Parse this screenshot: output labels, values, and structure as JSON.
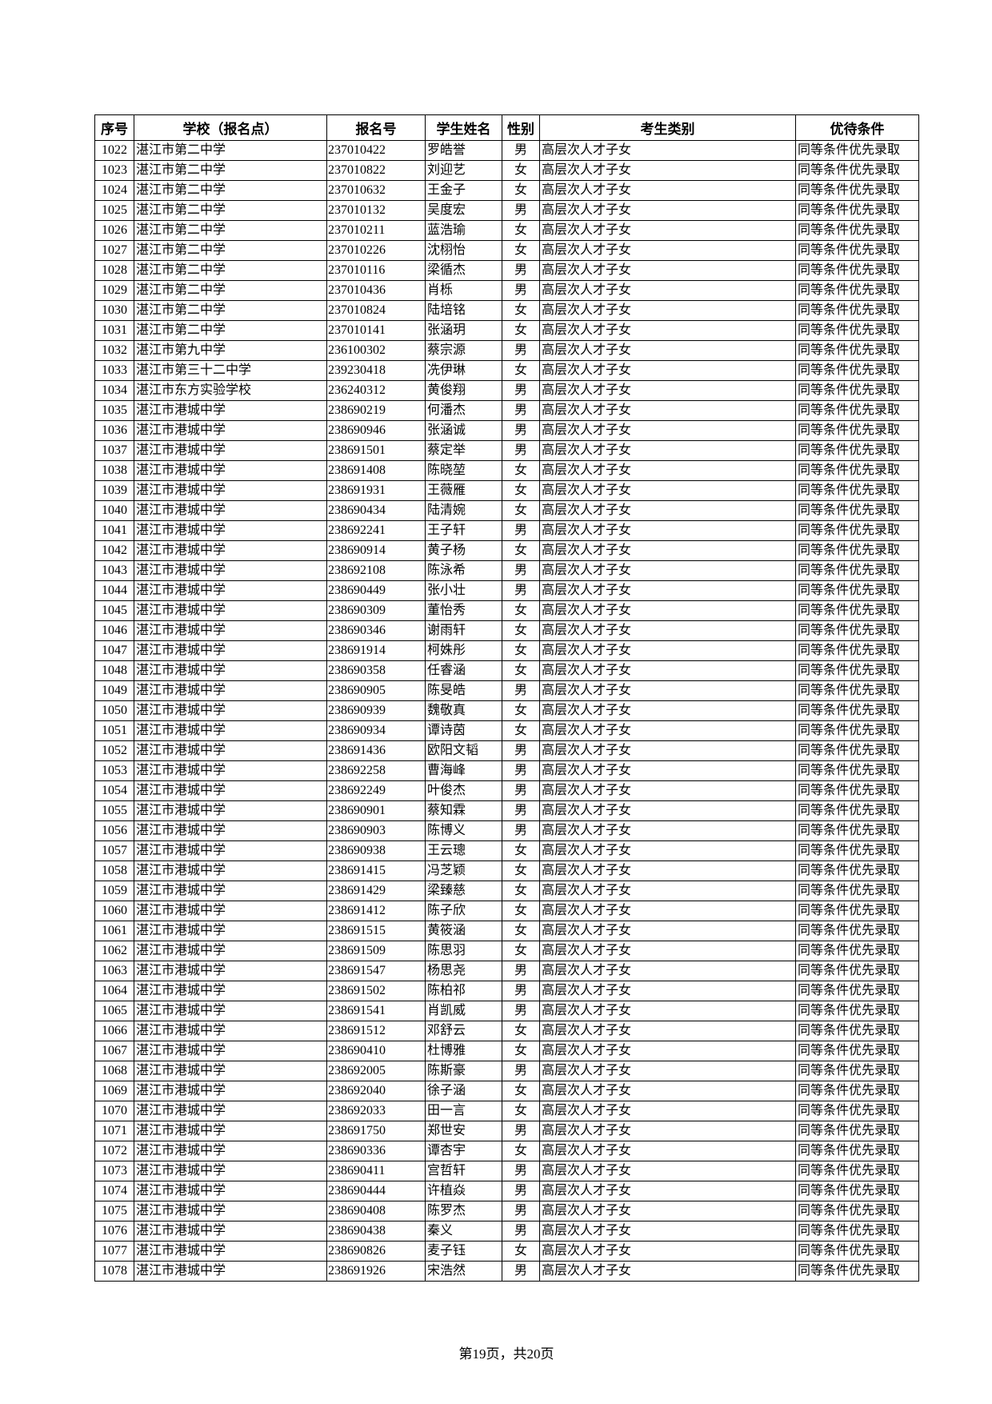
{
  "table": {
    "headers": [
      "序号",
      "学校（报名点）",
      "报名号",
      "学生姓名",
      "性别",
      "考生类别",
      "优待条件"
    ],
    "rows": [
      [
        "1022",
        "湛江市第二中学",
        "237010422",
        "罗皓誉",
        "男",
        "高层次人才子女",
        "同等条件优先录取"
      ],
      [
        "1023",
        "湛江市第二中学",
        "237010822",
        "刘迎艺",
        "女",
        "高层次人才子女",
        "同等条件优先录取"
      ],
      [
        "1024",
        "湛江市第二中学",
        "237010632",
        "王金子",
        "女",
        "高层次人才子女",
        "同等条件优先录取"
      ],
      [
        "1025",
        "湛江市第二中学",
        "237010132",
        "吴度宏",
        "男",
        "高层次人才子女",
        "同等条件优先录取"
      ],
      [
        "1026",
        "湛江市第二中学",
        "237010211",
        "蓝浩瑜",
        "女",
        "高层次人才子女",
        "同等条件优先录取"
      ],
      [
        "1027",
        "湛江市第二中学",
        "237010226",
        "沈栩怡",
        "女",
        "高层次人才子女",
        "同等条件优先录取"
      ],
      [
        "1028",
        "湛江市第二中学",
        "237010116",
        "梁循杰",
        "男",
        "高层次人才子女",
        "同等条件优先录取"
      ],
      [
        "1029",
        "湛江市第二中学",
        "237010436",
        "肖栎",
        "男",
        "高层次人才子女",
        "同等条件优先录取"
      ],
      [
        "1030",
        "湛江市第二中学",
        "237010824",
        "陆培铭",
        "女",
        "高层次人才子女",
        "同等条件优先录取"
      ],
      [
        "1031",
        "湛江市第二中学",
        "237010141",
        "张涵玥",
        "女",
        "高层次人才子女",
        "同等条件优先录取"
      ],
      [
        "1032",
        "湛江市第九中学",
        "236100302",
        "蔡宗源",
        "男",
        "高层次人才子女",
        "同等条件优先录取"
      ],
      [
        "1033",
        "湛江市第三十二中学",
        "239230418",
        "冼伊琳",
        "女",
        "高层次人才子女",
        "同等条件优先录取"
      ],
      [
        "1034",
        "湛江市东方实验学校",
        "236240312",
        "黄俊翔",
        "男",
        "高层次人才子女",
        "同等条件优先录取"
      ],
      [
        "1035",
        "湛江市港城中学",
        "238690219",
        "何潘杰",
        "男",
        "高层次人才子女",
        "同等条件优先录取"
      ],
      [
        "1036",
        "湛江市港城中学",
        "238690946",
        "张涵诚",
        "男",
        "高层次人才子女",
        "同等条件优先录取"
      ],
      [
        "1037",
        "湛江市港城中学",
        "238691501",
        "蔡定举",
        "男",
        "高层次人才子女",
        "同等条件优先录取"
      ],
      [
        "1038",
        "湛江市港城中学",
        "238691408",
        "陈晓堃",
        "女",
        "高层次人才子女",
        "同等条件优先录取"
      ],
      [
        "1039",
        "湛江市港城中学",
        "238691931",
        "王薇雁",
        "女",
        "高层次人才子女",
        "同等条件优先录取"
      ],
      [
        "1040",
        "湛江市港城中学",
        "238690434",
        "陆清婉",
        "女",
        "高层次人才子女",
        "同等条件优先录取"
      ],
      [
        "1041",
        "湛江市港城中学",
        "238692241",
        "王子轩",
        "男",
        "高层次人才子女",
        "同等条件优先录取"
      ],
      [
        "1042",
        "湛江市港城中学",
        "238690914",
        "黄子杨",
        "女",
        "高层次人才子女",
        "同等条件优先录取"
      ],
      [
        "1043",
        "湛江市港城中学",
        "238692108",
        "陈泳希",
        "男",
        "高层次人才子女",
        "同等条件优先录取"
      ],
      [
        "1044",
        "湛江市港城中学",
        "238690449",
        "张小壮",
        "男",
        "高层次人才子女",
        "同等条件优先录取"
      ],
      [
        "1045",
        "湛江市港城中学",
        "238690309",
        "董怡秀",
        "女",
        "高层次人才子女",
        "同等条件优先录取"
      ],
      [
        "1046",
        "湛江市港城中学",
        "238690346",
        "谢雨轩",
        "女",
        "高层次人才子女",
        "同等条件优先录取"
      ],
      [
        "1047",
        "湛江市港城中学",
        "238691914",
        "柯姝彤",
        "女",
        "高层次人才子女",
        "同等条件优先录取"
      ],
      [
        "1048",
        "湛江市港城中学",
        "238690358",
        "任睿涵",
        "女",
        "高层次人才子女",
        "同等条件优先录取"
      ],
      [
        "1049",
        "湛江市港城中学",
        "238690905",
        "陈旻皓",
        "男",
        "高层次人才子女",
        "同等条件优先录取"
      ],
      [
        "1050",
        "湛江市港城中学",
        "238690939",
        "魏敬真",
        "女",
        "高层次人才子女",
        "同等条件优先录取"
      ],
      [
        "1051",
        "湛江市港城中学",
        "238690934",
        "谭诗茵",
        "女",
        "高层次人才子女",
        "同等条件优先录取"
      ],
      [
        "1052",
        "湛江市港城中学",
        "238691436",
        "欧阳文韬",
        "男",
        "高层次人才子女",
        "同等条件优先录取"
      ],
      [
        "1053",
        "湛江市港城中学",
        "238692258",
        "曹海峰",
        "男",
        "高层次人才子女",
        "同等条件优先录取"
      ],
      [
        "1054",
        "湛江市港城中学",
        "238692249",
        "叶俊杰",
        "男",
        "高层次人才子女",
        "同等条件优先录取"
      ],
      [
        "1055",
        "湛江市港城中学",
        "238690901",
        "蔡知霖",
        "男",
        "高层次人才子女",
        "同等条件优先录取"
      ],
      [
        "1056",
        "湛江市港城中学",
        "238690903",
        "陈博义",
        "男",
        "高层次人才子女",
        "同等条件优先录取"
      ],
      [
        "1057",
        "湛江市港城中学",
        "238690938",
        "王云璁",
        "女",
        "高层次人才子女",
        "同等条件优先录取"
      ],
      [
        "1058",
        "湛江市港城中学",
        "238691415",
        "冯芝颖",
        "女",
        "高层次人才子女",
        "同等条件优先录取"
      ],
      [
        "1059",
        "湛江市港城中学",
        "238691429",
        "梁臻慈",
        "女",
        "高层次人才子女",
        "同等条件优先录取"
      ],
      [
        "1060",
        "湛江市港城中学",
        "238691412",
        "陈子欣",
        "女",
        "高层次人才子女",
        "同等条件优先录取"
      ],
      [
        "1061",
        "湛江市港城中学",
        "238691515",
        "黄筱涵",
        "女",
        "高层次人才子女",
        "同等条件优先录取"
      ],
      [
        "1062",
        "湛江市港城中学",
        "238691509",
        "陈思羽",
        "女",
        "高层次人才子女",
        "同等条件优先录取"
      ],
      [
        "1063",
        "湛江市港城中学",
        "238691547",
        "杨思尧",
        "男",
        "高层次人才子女",
        "同等条件优先录取"
      ],
      [
        "1064",
        "湛江市港城中学",
        "238691502",
        "陈柏祁",
        "男",
        "高层次人才子女",
        "同等条件优先录取"
      ],
      [
        "1065",
        "湛江市港城中学",
        "238691541",
        "肖凯威",
        "男",
        "高层次人才子女",
        "同等条件优先录取"
      ],
      [
        "1066",
        "湛江市港城中学",
        "238691512",
        "邓舒云",
        "女",
        "高层次人才子女",
        "同等条件优先录取"
      ],
      [
        "1067",
        "湛江市港城中学",
        "238690410",
        "杜博雅",
        "女",
        "高层次人才子女",
        "同等条件优先录取"
      ],
      [
        "1068",
        "湛江市港城中学",
        "238692005",
        "陈斯豪",
        "男",
        "高层次人才子女",
        "同等条件优先录取"
      ],
      [
        "1069",
        "湛江市港城中学",
        "238692040",
        "徐子涵",
        "女",
        "高层次人才子女",
        "同等条件优先录取"
      ],
      [
        "1070",
        "湛江市港城中学",
        "238692033",
        "田一言",
        "女",
        "高层次人才子女",
        "同等条件优先录取"
      ],
      [
        "1071",
        "湛江市港城中学",
        "238691750",
        "郑世安",
        "男",
        "高层次人才子女",
        "同等条件优先录取"
      ],
      [
        "1072",
        "湛江市港城中学",
        "238690336",
        "谭杏宇",
        "女",
        "高层次人才子女",
        "同等条件优先录取"
      ],
      [
        "1073",
        "湛江市港城中学",
        "238690411",
        "宫哲轩",
        "男",
        "高层次人才子女",
        "同等条件优先录取"
      ],
      [
        "1074",
        "湛江市港城中学",
        "238690444",
        "许植焱",
        "男",
        "高层次人才子女",
        "同等条件优先录取"
      ],
      [
        "1075",
        "湛江市港城中学",
        "238690408",
        "陈罗杰",
        "男",
        "高层次人才子女",
        "同等条件优先录取"
      ],
      [
        "1076",
        "湛江市港城中学",
        "238690438",
        "秦义",
        "男",
        "高层次人才子女",
        "同等条件优先录取"
      ],
      [
        "1077",
        "湛江市港城中学",
        "238690826",
        "麦子钰",
        "女",
        "高层次人才子女",
        "同等条件优先录取"
      ],
      [
        "1078",
        "湛江市港城中学",
        "238691926",
        "宋浩然",
        "男",
        "高层次人才子女",
        "同等条件优先录取"
      ]
    ]
  },
  "footer": {
    "page_label": "第19页，共20页"
  }
}
